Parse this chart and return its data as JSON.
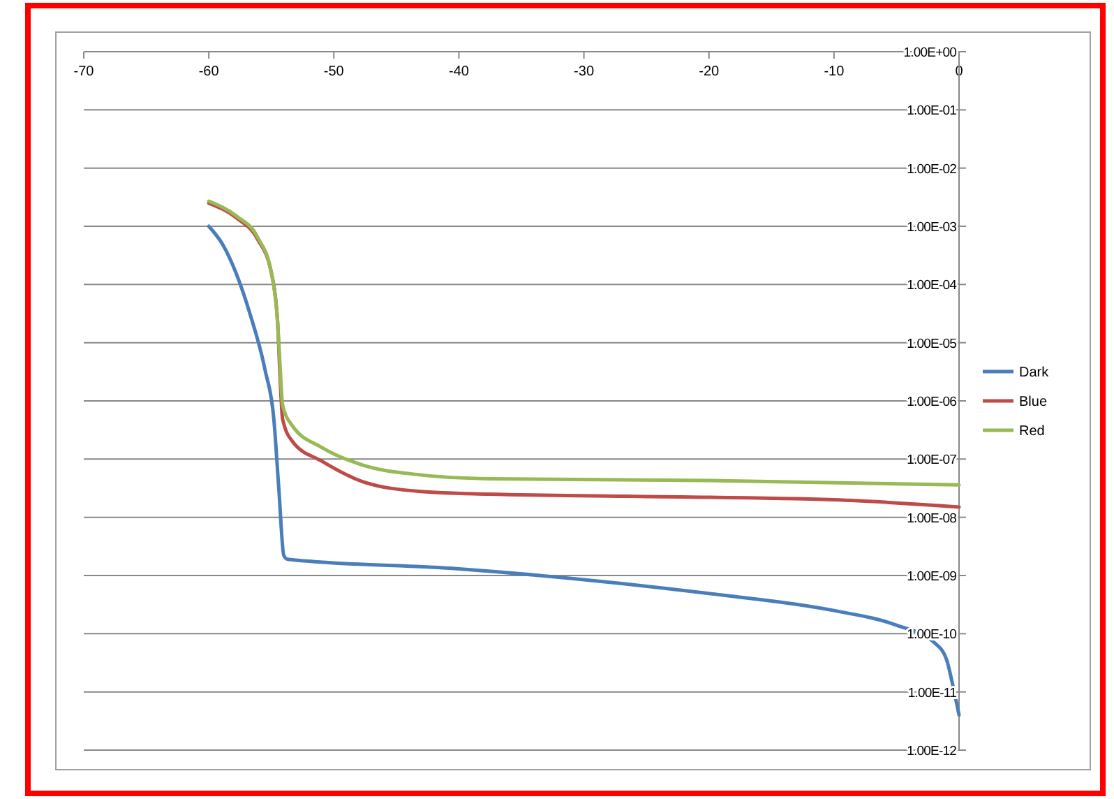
{
  "chart_data": {
    "type": "line",
    "xlim": [
      -70,
      0
    ],
    "xticks": [
      -70,
      -60,
      -50,
      -40,
      -30,
      -20,
      -10,
      0
    ],
    "log": "y",
    "ylim": [
      1e-12,
      1
    ],
    "yticks": [
      {
        "value": 1e-12,
        "label": "1.00E-12"
      },
      {
        "value": 1e-11,
        "label": "1.00E-11"
      },
      {
        "value": 1e-10,
        "label": "1.00E-10"
      },
      {
        "value": 1e-09,
        "label": "1.00E-09"
      },
      {
        "value": 1e-08,
        "label": "1.00E-08"
      },
      {
        "value": 1e-07,
        "label": "1.00E-07"
      },
      {
        "value": 1e-06,
        "label": "1.00E-06"
      },
      {
        "value": 1e-05,
        "label": "1.00E-05"
      },
      {
        "value": 0.0001,
        "label": "1.00E-04"
      },
      {
        "value": 0.001,
        "label": "1.00E-03"
      },
      {
        "value": 0.01,
        "label": "1.00E-02"
      },
      {
        "value": 0.1,
        "label": "1.00E-01"
      },
      {
        "value": 1,
        "label": "1.00E+00"
      }
    ],
    "grid": "y",
    "legend": "right",
    "marker": "none",
    "line_style": "solid",
    "series": [
      {
        "name": "Dark",
        "color": "#4a7ebb",
        "x": [
          -60,
          -58.9,
          -56.7,
          -55.5,
          -54.8,
          -54.4,
          -54,
          -53.7,
          -40,
          -20,
          -10,
          -5,
          -2,
          -1,
          -0.5,
          0
        ],
        "values": [
          0.001,
          0.00049,
          3.1e-05,
          3.4e-06,
          4.9e-07,
          3.1e-08,
          2.2e-09,
          1.9e-09,
          1.3e-09,
          4.9e-10,
          2.5e-10,
          1.4e-10,
          7.1e-11,
          3.6e-11,
          1.3e-11,
          4e-12
        ]
      },
      {
        "name": "Blue",
        "color": "#be4b48",
        "x": [
          -60,
          -57.8,
          -56.1,
          -55,
          -54.5,
          -54.3,
          -54.1,
          -53.3,
          -51,
          -47.7,
          -43.2,
          -37.6,
          -26.5,
          -10,
          0
        ],
        "values": [
          0.0025,
          0.0014,
          0.0006,
          0.00016,
          2.3e-05,
          2.6e-06,
          4.9e-07,
          2e-07,
          9.3e-08,
          4.1e-08,
          2.8e-08,
          2.5e-08,
          2.3e-08,
          2e-08,
          1.5e-08
        ]
      },
      {
        "name": "Red",
        "color": "#98b954",
        "x": [
          -60,
          -57.8,
          -56.1,
          -55,
          -54.5,
          -54.3,
          -54.1,
          -53.3,
          -51,
          -47.7,
          -43.2,
          -37.6,
          -20,
          0
        ],
        "values": [
          0.0027,
          0.0015,
          0.00065,
          0.00016,
          2.3e-05,
          4e-06,
          8.5e-07,
          3.7e-07,
          1.6e-07,
          7.9e-08,
          5.4e-08,
          4.6e-08,
          4.3e-08,
          3.6e-08
        ]
      }
    ]
  }
}
